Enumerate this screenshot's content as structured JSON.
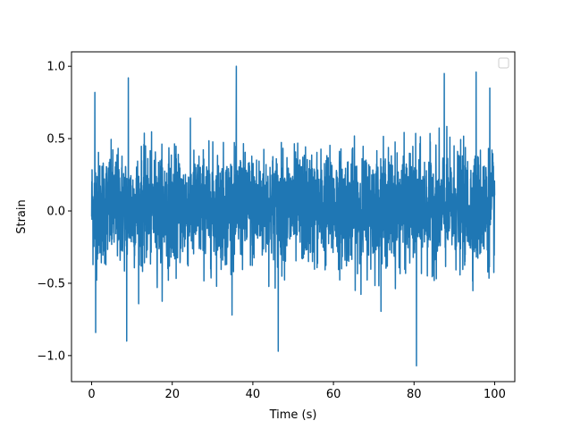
{
  "chart_data": {
    "type": "line",
    "title": "",
    "xlabel": "Time (s)",
    "ylabel": "Strain",
    "xlim": [
      -5,
      105
    ],
    "ylim": [
      -1.18,
      1.1
    ],
    "xticks": [
      0,
      20,
      40,
      60,
      80,
      100
    ],
    "xtick_labels": [
      "0",
      "20",
      "40",
      "60",
      "80",
      "100"
    ],
    "yticks": [
      -1.0,
      -0.5,
      0.0,
      0.5,
      1.0
    ],
    "ytick_labels": [
      "−1.0",
      "−0.5",
      "0.0",
      "0.5",
      "1.0"
    ],
    "grid": false,
    "legend": {
      "placement": "upper-right",
      "entries": []
    },
    "series": [
      {
        "color": "#1f77b4",
        "x_range": [
          0,
          100
        ],
        "typical_amplitude": [
          -0.45,
          0.5
        ],
        "extremes": [
          {
            "x": 0.8,
            "y": 0.82
          },
          {
            "x": 1.0,
            "y": -0.84
          },
          {
            "x": 8.7,
            "y": -0.9
          },
          {
            "x": 9.1,
            "y": 0.92
          },
          {
            "x": 35.9,
            "y": 1.0
          },
          {
            "x": 46.3,
            "y": -0.97
          },
          {
            "x": 80.6,
            "y": -1.07
          },
          {
            "x": 87.5,
            "y": 0.95
          },
          {
            "x": 95.4,
            "y": 0.96
          },
          {
            "x": 98.8,
            "y": 0.85
          }
        ]
      }
    ]
  }
}
